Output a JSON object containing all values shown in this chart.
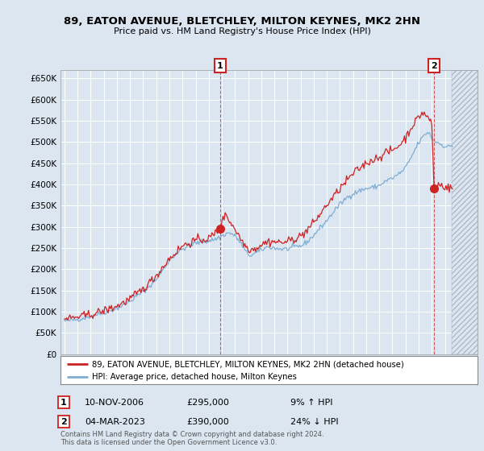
{
  "title": "89, EATON AVENUE, BLETCHLEY, MILTON KEYNES, MK2 2HN",
  "subtitle": "Price paid vs. HM Land Registry's House Price Index (HPI)",
  "ylim": [
    0,
    670000
  ],
  "yticks": [
    0,
    50000,
    100000,
    150000,
    200000,
    250000,
    300000,
    350000,
    400000,
    450000,
    500000,
    550000,
    600000,
    650000
  ],
  "xlim_start": 1994.7,
  "xlim_end": 2026.5,
  "hpi_color": "#7eadd4",
  "price_color": "#cc2222",
  "bg_color": "#dce6f1",
  "grid_color": "#ffffff",
  "sale1_date": 2006.86,
  "sale1_price": 295000,
  "sale1_label": "1",
  "sale2_date": 2023.17,
  "sale2_price": 390000,
  "sale2_label": "2",
  "legend_line1": "89, EATON AVENUE, BLETCHLEY, MILTON KEYNES, MK2 2HN (detached house)",
  "legend_line2": "HPI: Average price, detached house, Milton Keynes",
  "copyright": "Contains HM Land Registry data © Crown copyright and database right 2024.\nThis data is licensed under the Open Government Licence v3.0.",
  "hatch_start": 2024.5
}
